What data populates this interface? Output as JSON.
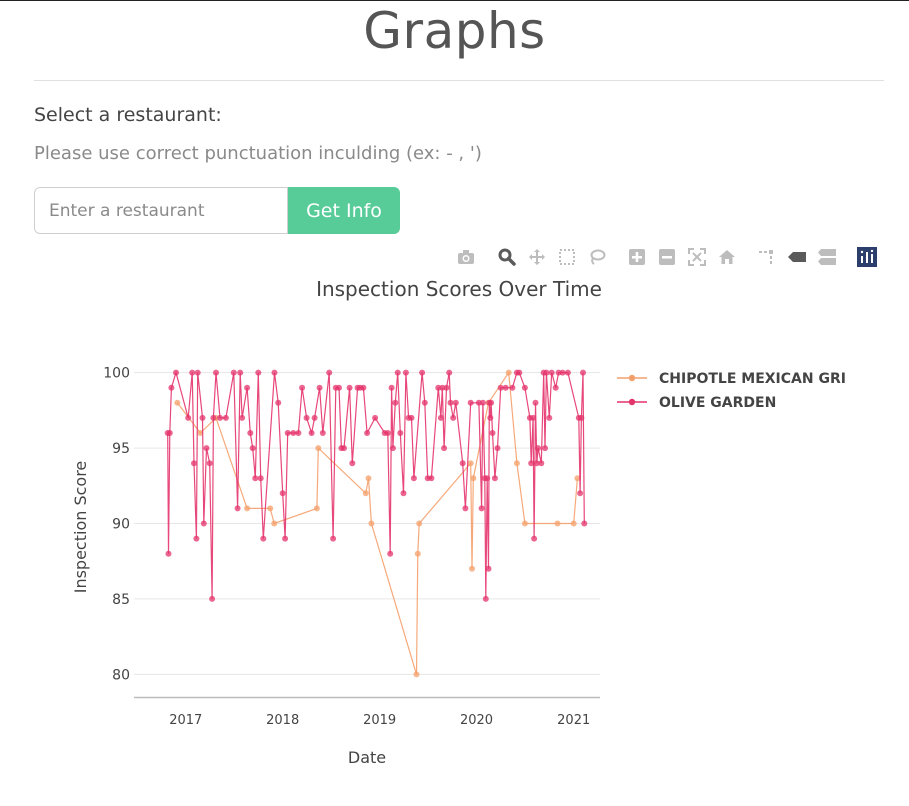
{
  "page": {
    "title": "Graphs",
    "select_label": "Select a restaurant:",
    "hint": "Please use correct punctuation inculding (ex: - , ')",
    "search_placeholder": "Enter a restaurant",
    "button_label": "Get Info"
  },
  "modebar": {
    "icons": [
      "camera-icon",
      "zoom-icon",
      "pan-icon",
      "box-select-icon",
      "lasso-select-icon",
      "zoom-in-icon",
      "zoom-out-icon",
      "autoscale-icon",
      "reset-axes-icon",
      "spike-lines-icon",
      "hover-closest-icon",
      "hover-compare-icon",
      "plotly-logo-icon"
    ]
  },
  "chart_data": {
    "type": "line",
    "title": "Inspection Scores Over Time",
    "xlabel": "Date",
    "ylabel": "Inspection Score",
    "x_ticks": [
      "2017",
      "2018",
      "2019",
      "2020",
      "2021"
    ],
    "y_ticks": [
      80,
      85,
      90,
      95,
      100
    ],
    "xlim": [
      "2016-06-20",
      "2021-04-10"
    ],
    "ylim": [
      78.5,
      101.5
    ],
    "grid": true,
    "legend_position": "top-right",
    "series": [
      {
        "name": "CHIPOTLE MEXICAN GRILL",
        "legend_label": "CHIPOTLE MEXICAN GRI",
        "color": "#f4a06b",
        "points": [
          [
            "2016-11-30",
            98
          ],
          [
            "2017-02-25",
            96
          ],
          [
            "2017-04-25",
            97
          ],
          [
            "2017-08-20",
            91
          ],
          [
            "2017-11-15",
            91
          ],
          [
            "2017-11-30",
            90
          ],
          [
            "2018-05-10",
            91
          ],
          [
            "2018-05-15",
            95
          ],
          [
            "2018-11-10",
            92
          ],
          [
            "2018-11-20",
            93
          ],
          [
            "2018-12-01",
            90
          ],
          [
            "2019-05-20",
            80
          ],
          [
            "2019-05-25",
            88
          ],
          [
            "2019-05-30",
            90
          ],
          [
            "2019-12-10",
            94
          ],
          [
            "2019-12-15",
            87
          ],
          [
            "2019-12-20",
            93
          ],
          [
            "2020-02-15",
            98
          ],
          [
            "2020-05-01",
            100
          ],
          [
            "2020-06-01",
            94
          ],
          [
            "2020-07-01",
            90
          ],
          [
            "2020-11-01",
            90
          ],
          [
            "2021-01-01",
            90
          ],
          [
            "2021-01-15",
            93
          ]
        ]
      },
      {
        "name": "OLIVE GARDEN",
        "legend_label": "OLIVE GARDEN",
        "color": "#e4336b",
        "points": [
          [
            "2016-10-25",
            96
          ],
          [
            "2016-10-28",
            88
          ],
          [
            "2016-11-02",
            96
          ],
          [
            "2016-11-08",
            99
          ],
          [
            "2016-11-25",
            100
          ],
          [
            "2017-01-10",
            97
          ],
          [
            "2017-01-25",
            100
          ],
          [
            "2017-02-01",
            94
          ],
          [
            "2017-02-10",
            89
          ],
          [
            "2017-02-15",
            100
          ],
          [
            "2017-03-05",
            97
          ],
          [
            "2017-03-10",
            90
          ],
          [
            "2017-03-20",
            95
          ],
          [
            "2017-04-01",
            94
          ],
          [
            "2017-04-10",
            85
          ],
          [
            "2017-04-15",
            97
          ],
          [
            "2017-04-25",
            100
          ],
          [
            "2017-05-10",
            97
          ],
          [
            "2017-06-01",
            97
          ],
          [
            "2017-07-01",
            100
          ],
          [
            "2017-07-15",
            91
          ],
          [
            "2017-07-25",
            100
          ],
          [
            "2017-08-01",
            97
          ],
          [
            "2017-08-20",
            99
          ],
          [
            "2017-09-01",
            96
          ],
          [
            "2017-09-10",
            95
          ],
          [
            "2017-09-20",
            93
          ],
          [
            "2017-10-01",
            100
          ],
          [
            "2017-10-10",
            93
          ],
          [
            "2017-10-20",
            89
          ],
          [
            "2017-12-01",
            100
          ],
          [
            "2017-12-15",
            98
          ],
          [
            "2018-01-01",
            92
          ],
          [
            "2018-01-10",
            89
          ],
          [
            "2018-01-20",
            96
          ],
          [
            "2018-02-10",
            96
          ],
          [
            "2018-03-01",
            96
          ],
          [
            "2018-03-15",
            99
          ],
          [
            "2018-04-01",
            97
          ],
          [
            "2018-04-20",
            96
          ],
          [
            "2018-05-01",
            97
          ],
          [
            "2018-05-20",
            99
          ],
          [
            "2018-06-01",
            96
          ],
          [
            "2018-06-25",
            100
          ],
          [
            "2018-07-10",
            89
          ],
          [
            "2018-07-20",
            99
          ],
          [
            "2018-08-01",
            99
          ],
          [
            "2018-08-10",
            95
          ],
          [
            "2018-08-20",
            95
          ],
          [
            "2018-09-10",
            99
          ],
          [
            "2018-09-20",
            94
          ],
          [
            "2018-10-10",
            99
          ],
          [
            "2018-10-20",
            99
          ],
          [
            "2018-11-01",
            99
          ],
          [
            "2018-11-15",
            96
          ],
          [
            "2018-12-15",
            97
          ],
          [
            "2019-01-20",
            96
          ],
          [
            "2019-02-01",
            96
          ],
          [
            "2019-02-10",
            88
          ],
          [
            "2019-02-15",
            99
          ],
          [
            "2019-02-20",
            95
          ],
          [
            "2019-03-01",
            98
          ],
          [
            "2019-03-10",
            100
          ],
          [
            "2019-03-20",
            96
          ],
          [
            "2019-04-01",
            92
          ],
          [
            "2019-04-10",
            100
          ],
          [
            "2019-04-20",
            97
          ],
          [
            "2019-05-01",
            97
          ],
          [
            "2019-05-10",
            93
          ],
          [
            "2019-06-10",
            100
          ],
          [
            "2019-06-20",
            98
          ],
          [
            "2019-07-01",
            93
          ],
          [
            "2019-07-15",
            93
          ],
          [
            "2019-08-10",
            99
          ],
          [
            "2019-08-20",
            97
          ],
          [
            "2019-08-25",
            99
          ],
          [
            "2019-09-01",
            95
          ],
          [
            "2019-09-10",
            99
          ],
          [
            "2019-09-20",
            100
          ],
          [
            "2019-09-25",
            98
          ],
          [
            "2019-10-05",
            97
          ],
          [
            "2019-10-15",
            98
          ],
          [
            "2019-11-10",
            94
          ],
          [
            "2019-11-20",
            91
          ],
          [
            "2019-12-10",
            98
          ],
          [
            "2020-01-10",
            98
          ],
          [
            "2020-01-20",
            91
          ],
          [
            "2020-01-25",
            98
          ],
          [
            "2020-02-01",
            93
          ],
          [
            "2020-02-05",
            85
          ],
          [
            "2020-02-10",
            93
          ],
          [
            "2020-02-15",
            87
          ],
          [
            "2020-02-18",
            98
          ],
          [
            "2020-02-22",
            97
          ],
          [
            "2020-02-25",
            98
          ],
          [
            "2020-03-01",
            96
          ],
          [
            "2020-03-10",
            93
          ],
          [
            "2020-03-20",
            95
          ],
          [
            "2020-04-01",
            99
          ],
          [
            "2020-04-20",
            99
          ],
          [
            "2020-05-15",
            99
          ],
          [
            "2020-06-01",
            100
          ],
          [
            "2020-06-10",
            100
          ],
          [
            "2020-07-01",
            99
          ],
          [
            "2020-07-20",
            97
          ],
          [
            "2020-07-25",
            94
          ],
          [
            "2020-08-01",
            97
          ],
          [
            "2020-08-05",
            89
          ],
          [
            "2020-08-10",
            98
          ],
          [
            "2020-08-15",
            94
          ],
          [
            "2020-08-20",
            95
          ],
          [
            "2020-09-01",
            94
          ],
          [
            "2020-09-10",
            100
          ],
          [
            "2020-09-15",
            95
          ],
          [
            "2020-09-20",
            100
          ],
          [
            "2020-10-01",
            97
          ],
          [
            "2020-10-10",
            100
          ],
          [
            "2020-10-25",
            99
          ],
          [
            "2020-11-05",
            100
          ],
          [
            "2020-11-20",
            100
          ],
          [
            "2020-12-10",
            100
          ],
          [
            "2021-01-20",
            97
          ],
          [
            "2021-01-25",
            92
          ],
          [
            "2021-01-30",
            97
          ],
          [
            "2021-02-05",
            100
          ],
          [
            "2021-02-10",
            90
          ]
        ]
      }
    ]
  }
}
